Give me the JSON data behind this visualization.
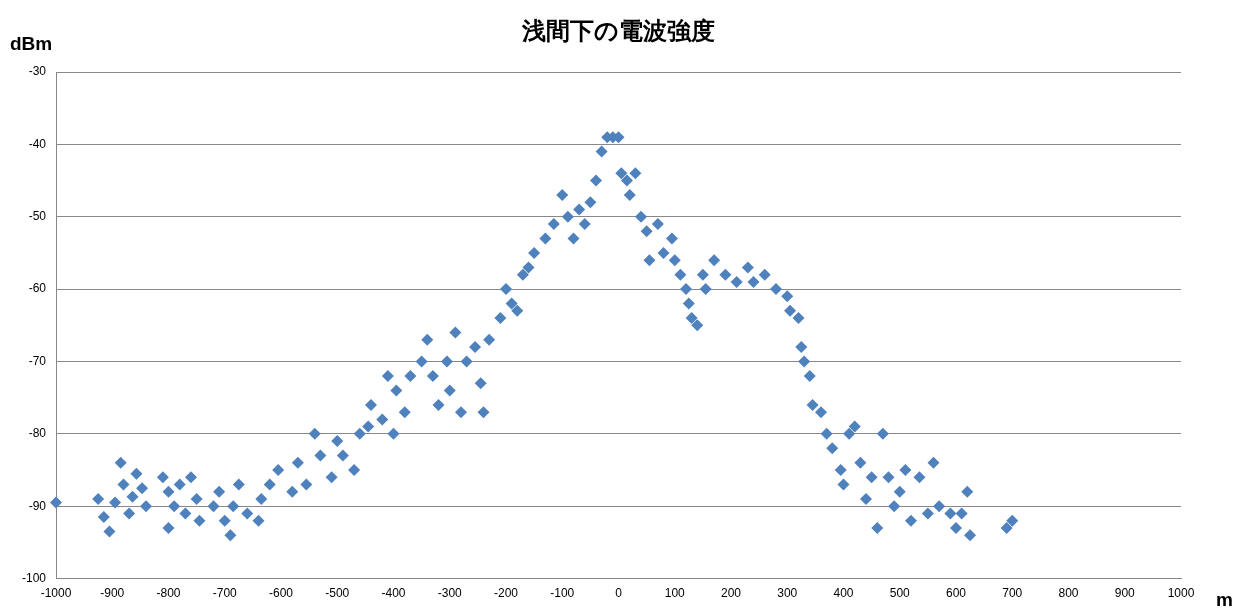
{
  "chart_data": {
    "type": "scatter",
    "title": "浅間下の電波強度",
    "xlabel": "m",
    "ylabel": "dBm",
    "xlim": [
      -1000,
      1000
    ],
    "xticks": [
      -1000,
      -900,
      -800,
      -700,
      -600,
      -500,
      -400,
      -300,
      -200,
      -100,
      0,
      100,
      200,
      300,
      400,
      500,
      600,
      700,
      800,
      900,
      1000
    ],
    "ylim": [
      -100,
      -30
    ],
    "yticks": [
      -100,
      -90,
      -80,
      -70,
      -60,
      -50,
      -40,
      -30
    ],
    "grid": "y",
    "legend": false,
    "marker": "diamond",
    "series": [
      {
        "color": "#4f81bd",
        "x": [
          -1000,
          -925,
          -915,
          -905,
          -895,
          -885,
          -880,
          -870,
          -864,
          -857,
          -847,
          -840,
          -810,
          -800,
          -800,
          -790,
          -780,
          -770,
          -760,
          -750,
          -745,
          -720,
          -710,
          -700,
          -690,
          -685,
          -675,
          -660,
          -640,
          -635,
          -620,
          -605,
          -580,
          -570,
          -555,
          -540,
          -530,
          -510,
          -500,
          -490,
          -470,
          -460,
          -445,
          -440,
          -420,
          -410,
          -400,
          -395,
          -380,
          -370,
          -350,
          -340,
          -330,
          -320,
          -305,
          -300,
          -290,
          -280,
          -270,
          -255,
          -245,
          -240,
          -230,
          -210,
          -200,
          -190,
          -180,
          -170,
          -160,
          -150,
          -130,
          -115,
          -100,
          -90,
          -80,
          -70,
          -60,
          -50,
          -40,
          -30,
          -20,
          -10,
          0,
          5,
          15,
          20,
          30,
          40,
          50,
          55,
          70,
          80,
          95,
          100,
          110,
          120,
          125,
          130,
          140,
          150,
          155,
          170,
          190,
          210,
          230,
          240,
          260,
          280,
          300,
          305,
          320,
          325,
          330,
          340,
          345,
          360,
          370,
          380,
          395,
          400,
          410,
          420,
          430,
          440,
          450,
          460,
          470,
          480,
          490,
          500,
          510,
          520,
          535,
          550,
          560,
          570,
          590,
          600,
          610,
          620,
          625,
          690,
          700
        ],
        "values": [
          -89.5,
          -89,
          -91.5,
          -93.5,
          -89.5,
          -84,
          -87,
          -91,
          -88.7,
          -85.5,
          -87.5,
          -90,
          -86,
          -88,
          -93,
          -90,
          -87,
          -91,
          -86,
          -89,
          -92,
          -90,
          -88,
          -92,
          -94,
          -90,
          -87,
          -91,
          -92,
          -89,
          -87,
          -85,
          -88,
          -84,
          -87,
          -80,
          -83,
          -86,
          -81,
          -83,
          -85,
          -80,
          -79,
          -76,
          -78,
          -72,
          -80,
          -74,
          -77,
          -72,
          -70,
          -67,
          -72,
          -76,
          -70,
          -74,
          -66,
          -77,
          -70,
          -68,
          -73,
          -77,
          -67,
          -64,
          -60,
          -62,
          -63,
          -58,
          -57,
          -55,
          -53,
          -51,
          -47,
          -50,
          -53,
          -49,
          -51,
          -48,
          -45,
          -41,
          -39,
          -39,
          -39,
          -44,
          -45,
          -47,
          -44,
          -50,
          -52,
          -56,
          -51,
          -55,
          -53,
          -56,
          -58,
          -60,
          -62,
          -64,
          -65,
          -58,
          -60,
          -56,
          -58,
          -59,
          -57,
          -59,
          -58,
          -60,
          -61,
          -63,
          -64,
          -68,
          -70,
          -72,
          -76,
          -77,
          -80,
          -82,
          -85,
          -87,
          -80,
          -79,
          -84,
          -89,
          -86,
          -93,
          -80,
          -86,
          -90,
          -88,
          -85,
          -92,
          -86,
          -91,
          -84,
          -90,
          -91,
          -93,
          -91,
          -88,
          -94,
          -93,
          -92
        ]
      }
    ]
  }
}
